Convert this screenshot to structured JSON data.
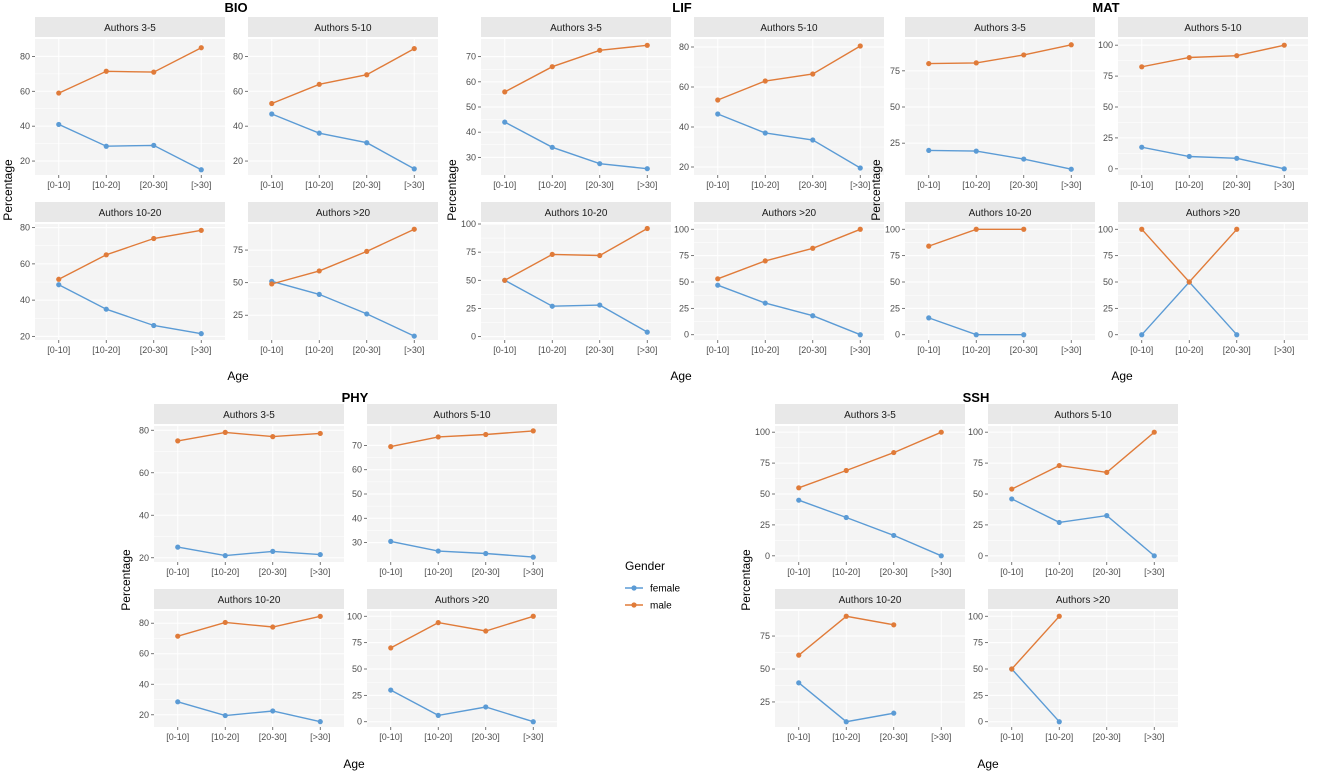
{
  "chart_data": {
    "type": "line",
    "x_label": "Age",
    "y_label": "Percentage",
    "categories": [
      "[0-10]",
      "[10-20]",
      "[20-30]",
      "[>30]"
    ],
    "legend": {
      "title": "Gender",
      "items": [
        {
          "key": "female",
          "label": "female",
          "color": "#5B9BD5"
        },
        {
          "key": "male",
          "label": "male",
          "color": "#E07B39"
        }
      ]
    },
    "groups": [
      {
        "title": "BIO",
        "panels": [
          {
            "strip": "Authors 3-5",
            "yticks": [
              20,
              40,
              60,
              80
            ],
            "ylim": [
              12,
              90
            ],
            "female": [
              41,
              28.5,
              29,
              15
            ],
            "male": [
              59,
              71.5,
              71,
              85
            ]
          },
          {
            "strip": "Authors  5-10",
            "yticks": [
              20,
              40,
              60,
              80
            ],
            "ylim": [
              12,
              90
            ],
            "female": [
              47,
              36,
              30.5,
              15.5
            ],
            "male": [
              53,
              64,
              69.5,
              84.5
            ]
          },
          {
            "strip": "Authors  10-20",
            "yticks": [
              20,
              40,
              60,
              80
            ],
            "ylim": [
              18,
              82
            ],
            "female": [
              48.5,
              35,
              26,
              21.5
            ],
            "male": [
              51.5,
              65,
              74,
              78.5
            ]
          },
          {
            "strip": "Authors >20",
            "yticks": [
              25,
              50,
              75
            ],
            "ylim": [
              6,
              95
            ],
            "female": [
              51,
              41,
              26,
              9
            ],
            "male": [
              49,
              59,
              74,
              91
            ]
          }
        ]
      },
      {
        "title": "LIF",
        "panels": [
          {
            "strip": "Authors 3-5",
            "yticks": [
              30,
              40,
              50,
              60,
              70
            ],
            "ylim": [
              23,
              77
            ],
            "female": [
              44,
              34,
              27.5,
              25.5
            ],
            "male": [
              56,
              66,
              72.5,
              74.5
            ]
          },
          {
            "strip": "Authors  5-10",
            "yticks": [
              20,
              40,
              60,
              80
            ],
            "ylim": [
              16,
              84
            ],
            "female": [
              46.5,
              37,
              33.5,
              19.5
            ],
            "male": [
              53.5,
              63,
              66.5,
              80.5
            ]
          },
          {
            "strip": "Authors  10-20",
            "yticks": [
              0,
              25,
              50,
              75,
              100
            ],
            "ylim": [
              -3,
              100
            ],
            "female": [
              50,
              27,
              28,
              4
            ],
            "male": [
              50,
              73,
              72,
              96
            ]
          },
          {
            "strip": "Authors >20",
            "yticks": [
              0,
              25,
              50,
              75,
              100
            ],
            "ylim": [
              -5,
              105
            ],
            "female": [
              47,
              30,
              18,
              0
            ],
            "male": [
              53,
              70,
              82,
              100
            ]
          }
        ]
      },
      {
        "title": "MAT",
        "panels": [
          {
            "strip": "Authors 3-5",
            "yticks": [
              25,
              50,
              75
            ],
            "ylim": [
              3,
              97
            ],
            "female": [
              20,
              19.5,
              14,
              7
            ],
            "male": [
              80,
              80.5,
              86,
              93
            ]
          },
          {
            "strip": "Authors  5-10",
            "yticks": [
              0,
              25,
              50,
              75,
              100
            ],
            "ylim": [
              -5,
              105
            ],
            "female": [
              17.5,
              10,
              8.5,
              0
            ],
            "male": [
              82.5,
              90,
              91.5,
              100
            ]
          },
          {
            "strip": "Authors  10-20",
            "yticks": [
              0,
              25,
              50,
              75,
              100
            ],
            "ylim": [
              -5,
              105
            ],
            "female": [
              16,
              0,
              0,
              null
            ],
            "male": [
              84,
              100,
              100,
              null
            ]
          },
          {
            "strip": "Authors >20",
            "yticks": [
              0,
              25,
              50,
              75,
              100
            ],
            "ylim": [
              -5,
              105
            ],
            "female": [
              0,
              50,
              0,
              null
            ],
            "male": [
              100,
              50,
              100,
              null
            ]
          }
        ]
      },
      {
        "title": "PHY",
        "panels": [
          {
            "strip": "Authors 3-5",
            "yticks": [
              20,
              40,
              60,
              80
            ],
            "ylim": [
              18,
              82
            ],
            "female": [
              25,
              21,
              23,
              21.5
            ],
            "male": [
              75,
              79,
              77,
              78.5
            ]
          },
          {
            "strip": "Authors  5-10",
            "yticks": [
              30,
              40,
              50,
              60,
              70
            ],
            "ylim": [
              22,
              78
            ],
            "female": [
              30.5,
              26.5,
              25.5,
              24
            ],
            "male": [
              69.5,
              73.5,
              74.5,
              76
            ]
          },
          {
            "strip": "Authors  10-20",
            "yticks": [
              20,
              40,
              60,
              80
            ],
            "ylim": [
              12,
              88
            ],
            "female": [
              28.5,
              19.5,
              22.5,
              15.5
            ],
            "male": [
              71.5,
              80.5,
              77.5,
              84.5
            ]
          },
          {
            "strip": "Authors >20",
            "yticks": [
              0,
              25,
              50,
              75,
              100
            ],
            "ylim": [
              -5,
              105
            ],
            "female": [
              30,
              6,
              14,
              0
            ],
            "male": [
              70,
              94,
              86,
              100
            ]
          }
        ]
      },
      {
        "title": "SSH",
        "panels": [
          {
            "strip": "Authors 3-5",
            "yticks": [
              0,
              25,
              50,
              75,
              100
            ],
            "ylim": [
              -5,
              105
            ],
            "female": [
              45,
              31,
              16.5,
              0
            ],
            "male": [
              55,
              69,
              83.5,
              100
            ]
          },
          {
            "strip": "Authors  5-10",
            "yticks": [
              0,
              25,
              50,
              75,
              100
            ],
            "ylim": [
              -5,
              105
            ],
            "female": [
              46,
              27,
              32.5,
              0
            ],
            "male": [
              54,
              73,
              67.5,
              100
            ]
          },
          {
            "strip": "Authors  10-20",
            "yticks": [
              25,
              50,
              75
            ],
            "ylim": [
              6,
              94
            ],
            "female": [
              39.5,
              10,
              16.5,
              null
            ],
            "male": [
              60.5,
              90,
              83.5,
              null
            ]
          },
          {
            "strip": "Authors >20",
            "yticks": [
              0,
              25,
              50,
              75,
              100
            ],
            "ylim": [
              -5,
              105
            ],
            "female": [
              50,
              0,
              null,
              null
            ],
            "male": [
              50,
              100,
              null,
              null
            ]
          }
        ]
      }
    ]
  }
}
